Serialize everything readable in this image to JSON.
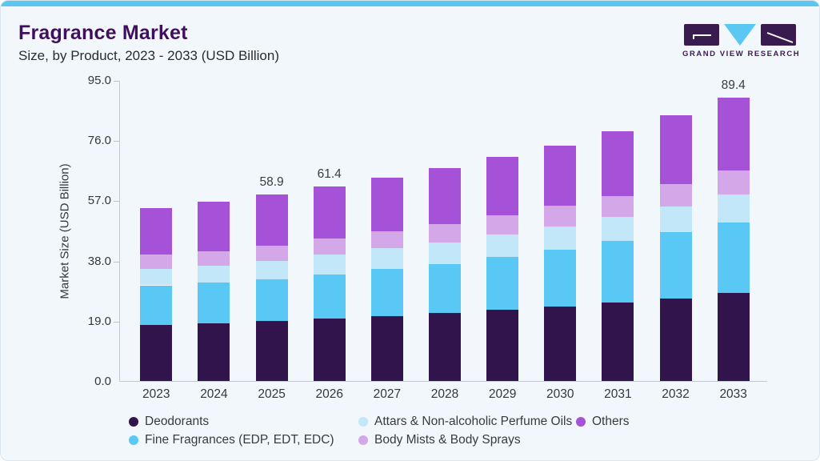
{
  "header": {
    "title": "Fragrance Market",
    "subtitle": "Size, by Product, 2023 - 2033 (USD Billion)",
    "logo_text": "GRAND VIEW RESEARCH"
  },
  "colors": {
    "accent_bar": "#5bc7f0",
    "card_background": "#f2f7fb",
    "card_border": "#d9e5ef",
    "title_text": "#3f105d",
    "axis_line": "#c3cad4",
    "deodorants": "#32144c",
    "fine_fragrances": "#5ac8f4",
    "attars": "#c1e7f8",
    "body_mists": "#d3a7e8",
    "others": "#a552d8",
    "logo_purple": "#3a1b4f",
    "logo_blue": "#5ac8f2"
  },
  "chart_data": {
    "type": "bar",
    "stacked": true,
    "title": "Fragrance Market Size, by Product, 2023 - 2033 (USD Billion)",
    "ylabel": "Market Size (USD Billion)",
    "xlabel": "",
    "ylim": [
      0,
      95
    ],
    "grid": false,
    "legend_position": "bottom",
    "y_ticks": [
      "0.0",
      "19.0",
      "38.0",
      "57.0",
      "76.0",
      "95.0"
    ],
    "y_tick_values": [
      0,
      19,
      38,
      57,
      76,
      95
    ],
    "categories": [
      "2023",
      "2024",
      "2025",
      "2026",
      "2027",
      "2028",
      "2029",
      "2030",
      "2031",
      "2032",
      "2033"
    ],
    "series": [
      {
        "name": "Deodorants",
        "color": "#32144c",
        "values": [
          17.8,
          18.3,
          19.0,
          19.6,
          20.5,
          21.4,
          22.5,
          23.5,
          24.8,
          26.1,
          27.7
        ]
      },
      {
        "name": "Fine Fragrances (EDP, EDT, EDC)",
        "color": "#5ac8f4",
        "values": [
          12.4,
          12.7,
          13.1,
          14.0,
          15.0,
          15.6,
          16.6,
          17.9,
          19.3,
          20.8,
          22.4
        ]
      },
      {
        "name": "Attars & Non-alcoholic Perfume Oils",
        "color": "#c1e7f8",
        "values": [
          5.2,
          5.3,
          5.9,
          6.3,
          6.5,
          6.7,
          7.2,
          7.4,
          7.6,
          8.2,
          8.7
        ]
      },
      {
        "name": "Body Mists & Body Sprays",
        "color": "#d3a7e8",
        "values": [
          4.4,
          4.7,
          4.7,
          5.1,
          5.2,
          5.9,
          6.0,
          6.5,
          6.6,
          7.0,
          7.6
        ]
      },
      {
        "name": "Others",
        "color": "#a552d8",
        "values": [
          14.7,
          15.5,
          16.2,
          16.4,
          16.9,
          17.5,
          18.5,
          19.1,
          20.6,
          21.8,
          23.0
        ]
      }
    ],
    "totals": [
      54.5,
      56.5,
      58.9,
      61.4,
      64.1,
      67.1,
      70.8,
      74.4,
      78.9,
      83.9,
      89.4
    ],
    "bar_value_labels": {
      "2025": "58.9",
      "2026": "61.4",
      "2033": "89.4"
    }
  }
}
